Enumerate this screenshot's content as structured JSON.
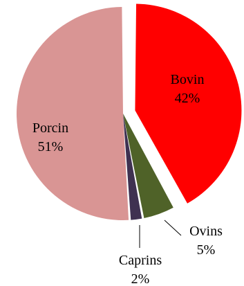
{
  "chart_data": {
    "type": "pie",
    "title": "",
    "unit": "%",
    "slices": [
      {
        "name": "Bovin",
        "label": "Bovin",
        "percent_label": "42%",
        "value": 42,
        "color": "#FF0000",
        "exploded": true
      },
      {
        "name": "Ovins",
        "label": "Ovins",
        "percent_label": "5%",
        "value": 5,
        "color": "#4F6228",
        "exploded": false
      },
      {
        "name": "Caprins",
        "label": "Caprins",
        "percent_label": "2%",
        "value": 2,
        "color": "#3F3151",
        "exploded": false
      },
      {
        "name": "Porcin",
        "label": "Porcin",
        "percent_label": "51%",
        "value": 51,
        "color": "#D99594",
        "exploded": false
      }
    ],
    "label_color": "#000000",
    "start": "12 o'clock, clockwise",
    "legend": "none"
  }
}
